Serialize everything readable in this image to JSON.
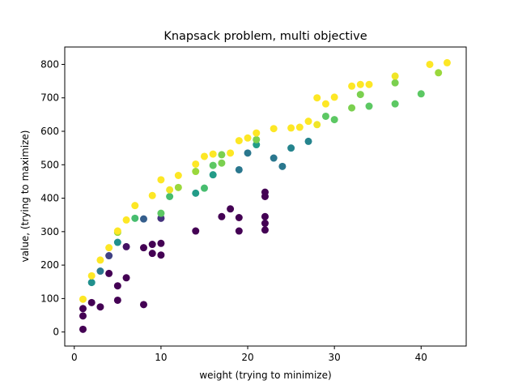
{
  "chart_data": {
    "type": "scatter",
    "title": "Knapsack problem, multi objective",
    "xlabel": "weight (trying to minimize)",
    "ylabel": "value, (trying to maximize)",
    "xlim": [
      -1.1,
      45.2
    ],
    "ylim": [
      -42,
      852
    ],
    "xticks": [
      0,
      10,
      20,
      30,
      40
    ],
    "yticks": [
      0,
      100,
      200,
      300,
      400,
      500,
      600,
      700,
      800
    ],
    "grid": false,
    "colormap": "viridis",
    "color_min": 0,
    "color_max": 1,
    "points": [
      [
        1,
        8,
        0.0
      ],
      [
        1,
        48,
        0.0
      ],
      [
        1,
        70,
        0.0
      ],
      [
        2,
        88,
        0.0
      ],
      [
        3,
        75,
        0.0
      ],
      [
        4,
        175,
        0.0
      ],
      [
        5,
        95,
        0.0
      ],
      [
        5,
        138,
        0.0
      ],
      [
        6,
        162,
        0.0
      ],
      [
        6,
        255,
        0.05
      ],
      [
        8,
        82,
        0.0
      ],
      [
        8,
        252,
        0.0
      ],
      [
        9,
        235,
        0.0
      ],
      [
        9,
        262,
        0.0
      ],
      [
        10,
        230,
        0.0
      ],
      [
        10,
        265,
        0.0
      ],
      [
        14,
        302,
        0.0
      ],
      [
        17,
        345,
        0.0
      ],
      [
        18,
        368,
        0.0
      ],
      [
        19,
        342,
        0.0
      ],
      [
        19,
        302,
        0.0
      ],
      [
        22,
        305,
        0.0
      ],
      [
        22,
        325,
        0.0
      ],
      [
        22,
        345,
        0.0
      ],
      [
        22,
        405,
        0.0
      ],
      [
        22,
        418,
        0.0
      ],
      [
        4,
        228,
        0.2
      ],
      [
        10,
        340,
        0.15
      ],
      [
        3,
        182,
        0.4
      ],
      [
        8,
        338,
        0.3
      ],
      [
        19,
        485,
        0.4
      ],
      [
        20,
        535,
        0.4
      ],
      [
        23,
        520,
        0.4
      ],
      [
        24,
        495,
        0.4
      ],
      [
        25,
        550,
        0.45
      ],
      [
        27,
        570,
        0.45
      ],
      [
        2,
        148,
        0.5
      ],
      [
        5,
        268,
        0.5
      ],
      [
        14,
        415,
        0.55
      ],
      [
        16,
        470,
        0.55
      ],
      [
        21,
        560,
        0.55
      ],
      [
        7,
        340,
        0.7
      ],
      [
        10,
        355,
        0.75
      ],
      [
        11,
        405,
        0.7
      ],
      [
        15,
        430,
        0.7
      ],
      [
        16,
        498,
        0.75
      ],
      [
        17,
        505,
        0.8
      ],
      [
        17,
        530,
        0.8
      ],
      [
        21,
        575,
        0.8
      ],
      [
        29,
        645,
        0.75
      ],
      [
        30,
        635,
        0.75
      ],
      [
        32,
        670,
        0.8
      ],
      [
        33,
        710,
        0.8
      ],
      [
        34,
        675,
        0.75
      ],
      [
        37,
        682,
        0.75
      ],
      [
        37,
        745,
        0.8
      ],
      [
        40,
        712,
        0.75
      ],
      [
        42,
        775,
        0.85
      ],
      [
        5,
        298,
        0.85
      ],
      [
        12,
        432,
        0.85
      ],
      [
        14,
        480,
        0.85
      ],
      [
        1,
        98,
        1.0
      ],
      [
        2,
        168,
        1.0
      ],
      [
        3,
        215,
        1.0
      ],
      [
        4,
        252,
        1.0
      ],
      [
        5,
        302,
        1.0
      ],
      [
        6,
        335,
        1.0
      ],
      [
        7,
        378,
        1.0
      ],
      [
        9,
        408,
        1.0
      ],
      [
        10,
        455,
        1.0
      ],
      [
        11,
        425,
        0.98
      ],
      [
        12,
        468,
        1.0
      ],
      [
        14,
        502,
        1.0
      ],
      [
        15,
        525,
        1.0
      ],
      [
        16,
        532,
        1.0
      ],
      [
        18,
        535,
        1.0
      ],
      [
        19,
        572,
        1.0
      ],
      [
        20,
        580,
        1.0
      ],
      [
        21,
        595,
        1.0
      ],
      [
        23,
        608,
        1.0
      ],
      [
        25,
        610,
        1.0
      ],
      [
        26,
        612,
        1.0
      ],
      [
        27,
        630,
        1.0
      ],
      [
        28,
        620,
        0.98
      ],
      [
        28,
        700,
        1.0
      ],
      [
        29,
        682,
        1.0
      ],
      [
        30,
        702,
        1.0
      ],
      [
        32,
        735,
        1.0
      ],
      [
        33,
        740,
        1.0
      ],
      [
        34,
        740,
        1.0
      ],
      [
        37,
        765,
        0.98
      ],
      [
        41,
        800,
        1.0
      ],
      [
        43,
        805,
        1.0
      ]
    ]
  }
}
